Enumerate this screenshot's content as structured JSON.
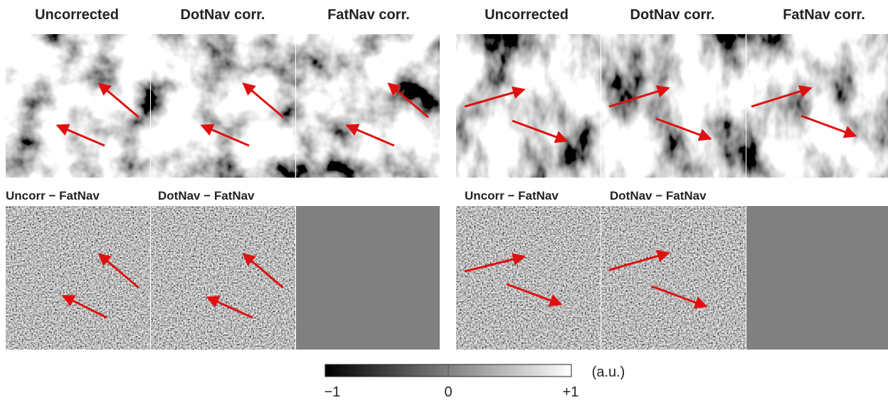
{
  "left": {
    "headers": [
      "Uncorrected",
      "DotNav corr.",
      "FatNav corr."
    ],
    "diff_labels": [
      "Uncorr − FatNav",
      "DotNav − FatNav"
    ]
  },
  "right": {
    "headers": [
      "Uncorrected",
      "DotNav corr.",
      "FatNav corr."
    ],
    "diff_labels": [
      "Uncorr − FatNav",
      "DotNav − FatNav"
    ]
  },
  "colorbar": {
    "tick_labels": [
      "−1",
      "0",
      "+1"
    ],
    "unit": "(a.u.)"
  }
}
